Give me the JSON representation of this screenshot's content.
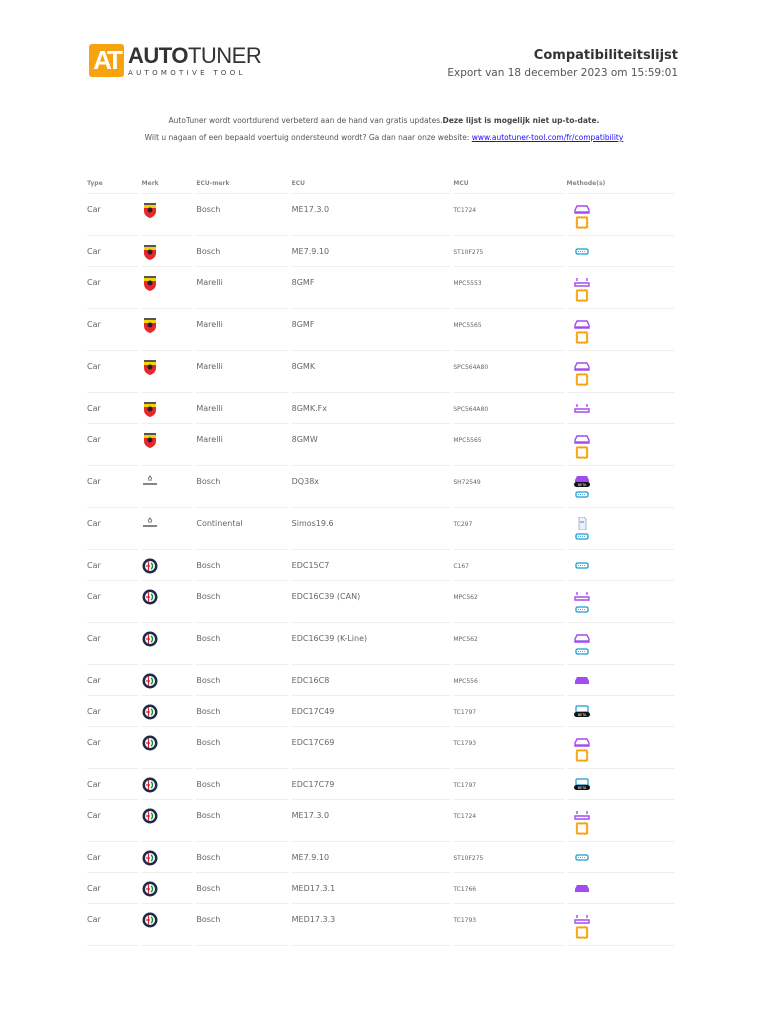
{
  "header": {
    "logo": {
      "mark": "AT",
      "name_bold": "AUTO",
      "name_light": "TUNER",
      "tagline": "AUTOMOTIVE TOOL",
      "brand_color": "#f7a30f"
    },
    "title": "Compatibiliteitslijst",
    "export": "Export van 18 december 2023 om 15:59:01"
  },
  "notice": {
    "line1": "AutoTuner wordt voortdurend verbeterd aan de hand van gratis updates.",
    "line1_bold": "Deze lijst is mogelijk niet up-to-date.",
    "line2": "Wilt u nagaan of een bepaald voertuig ondersteund wordt? Ga dan naar onze website: ",
    "link": "www.autotuner-tool.com/fr/compatibility"
  },
  "colors": {
    "bench": "#a24cf0",
    "boot": "#f7a30f",
    "obd": "#1a9ad6"
  },
  "table": {
    "columns": [
      "Type",
      "Merk",
      "ECU-merk",
      "ECU",
      "MCU",
      "Methode(s)"
    ],
    "rows": [
      {
        "type": "Car",
        "brand": "abarth",
        "ecu_brand": "Bosch",
        "ecu": "ME17.3.0",
        "mcu": "TC1724",
        "methods": [
          "bench",
          "boot"
        ]
      },
      {
        "type": "Car",
        "brand": "abarth",
        "ecu_brand": "Bosch",
        "ecu": "ME7.9.10",
        "mcu": "ST10F275",
        "methods": [
          "obd"
        ]
      },
      {
        "type": "Car",
        "brand": "abarth",
        "ecu_brand": "Marelli",
        "ecu": "8GMF",
        "mcu": "MPC5553",
        "methods": [
          "bench-open",
          "boot"
        ]
      },
      {
        "type": "Car",
        "brand": "abarth",
        "ecu_brand": "Marelli",
        "ecu": "8GMF",
        "mcu": "MPC5565",
        "methods": [
          "bench",
          "boot"
        ]
      },
      {
        "type": "Car",
        "brand": "abarth",
        "ecu_brand": "Marelli",
        "ecu": "8GMK",
        "mcu": "SPC564A80",
        "methods": [
          "bench",
          "boot"
        ]
      },
      {
        "type": "Car",
        "brand": "abarth",
        "ecu_brand": "Marelli",
        "ecu": "8GMK.Fx",
        "mcu": "SPC564A80",
        "methods": [
          "bench-open"
        ]
      },
      {
        "type": "Car",
        "brand": "abarth",
        "ecu_brand": "Marelli",
        "ecu": "8GMW",
        "mcu": "MPC5565",
        "methods": [
          "bench",
          "boot"
        ]
      },
      {
        "type": "Car",
        "brand": "acura",
        "ecu_brand": "Bosch",
        "ecu": "DQ38x",
        "mcu": "SH72549",
        "methods": [
          "bench-beta",
          "obd"
        ]
      },
      {
        "type": "Car",
        "brand": "acura",
        "ecu_brand": "Continental",
        "ecu": "Simos19.6",
        "mcu": "TC297",
        "methods": [
          "file",
          "obd"
        ]
      },
      {
        "type": "Car",
        "brand": "alfa-romeo",
        "ecu_brand": "Bosch",
        "ecu": "EDC15C7",
        "mcu": "C167",
        "methods": [
          "obd"
        ]
      },
      {
        "type": "Car",
        "brand": "alfa-romeo",
        "ecu_brand": "Bosch",
        "ecu": "EDC16C39 (CAN)",
        "mcu": "MPC562",
        "methods": [
          "bench-open",
          "obd"
        ]
      },
      {
        "type": "Car",
        "brand": "alfa-romeo",
        "ecu_brand": "Bosch",
        "ecu": "EDC16C39 (K-Line)",
        "mcu": "MPC562",
        "methods": [
          "bench",
          "obd"
        ]
      },
      {
        "type": "Car",
        "brand": "alfa-romeo",
        "ecu_brand": "Bosch",
        "ecu": "EDC16C8",
        "mcu": "MPC556",
        "methods": [
          "bench-filled"
        ]
      },
      {
        "type": "Car",
        "brand": "alfa-romeo",
        "ecu_brand": "Bosch",
        "ecu": "EDC17C49",
        "mcu": "TC1797",
        "methods": [
          "obd-beta"
        ]
      },
      {
        "type": "Car",
        "brand": "alfa-romeo",
        "ecu_brand": "Bosch",
        "ecu": "EDC17C69",
        "mcu": "TC1793",
        "methods": [
          "bench",
          "boot"
        ]
      },
      {
        "type": "Car",
        "brand": "alfa-romeo",
        "ecu_brand": "Bosch",
        "ecu": "EDC17C79",
        "mcu": "TC1797",
        "methods": [
          "obd-beta"
        ]
      },
      {
        "type": "Car",
        "brand": "alfa-romeo",
        "ecu_brand": "Bosch",
        "ecu": "ME17.3.0",
        "mcu": "TC1724",
        "methods": [
          "bench-open",
          "boot"
        ]
      },
      {
        "type": "Car",
        "brand": "alfa-romeo",
        "ecu_brand": "Bosch",
        "ecu": "ME7.9.10",
        "mcu": "ST10F275",
        "methods": [
          "obd"
        ]
      },
      {
        "type": "Car",
        "brand": "alfa-romeo",
        "ecu_brand": "Bosch",
        "ecu": "MED17.3.1",
        "mcu": "TC1766",
        "methods": [
          "bench-filled"
        ]
      },
      {
        "type": "Car",
        "brand": "alfa-romeo",
        "ecu_brand": "Bosch",
        "ecu": "MED17.3.3",
        "mcu": "TC1793",
        "methods": [
          "bench-open",
          "boot"
        ]
      }
    ]
  }
}
